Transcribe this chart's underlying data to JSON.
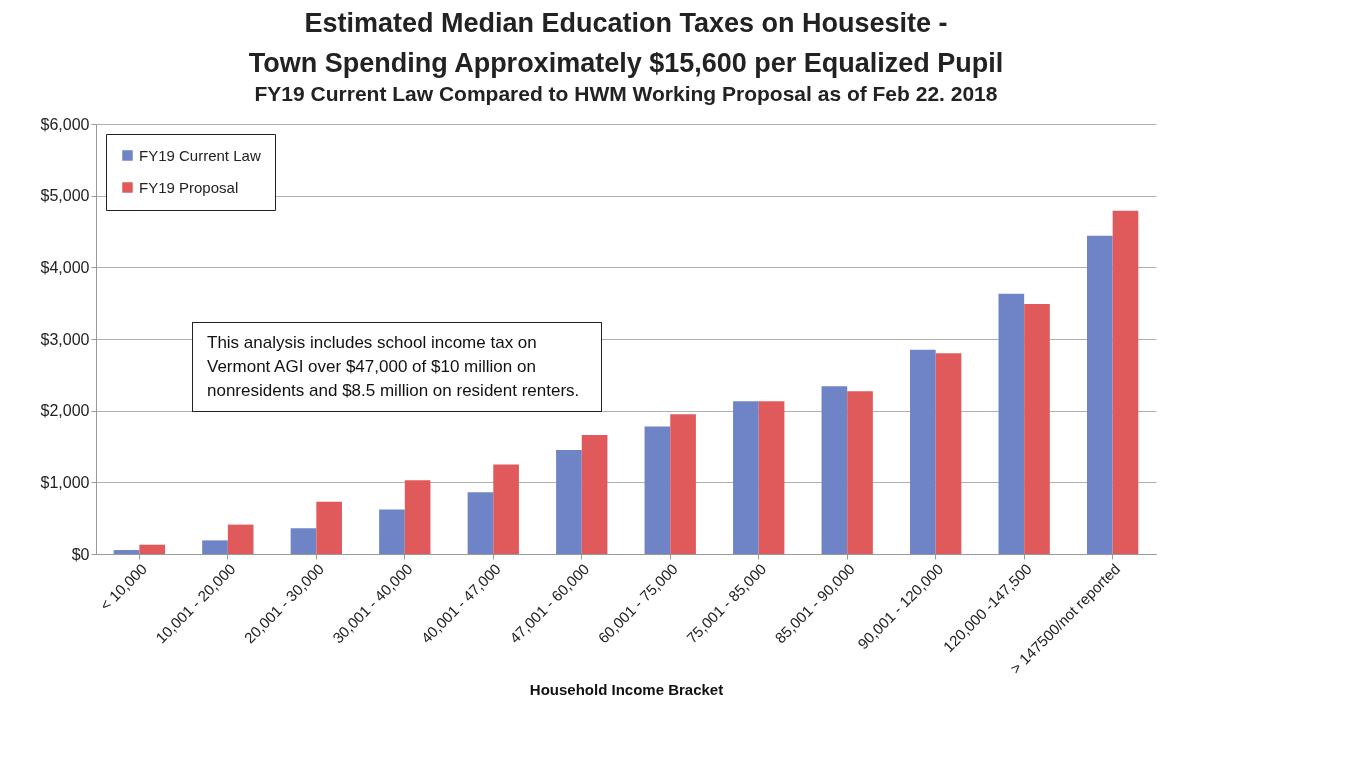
{
  "chart_data": {
    "type": "bar",
    "title": "Estimated Median Education Taxes on Housesite -\nTown Spending Approximately $15,600 per Equalized Pupil",
    "subtitle": "FY19 Current Law Compared to HWM Working Proposal as of Feb 22. 2018",
    "xlabel": "Household Income Bracket",
    "categories": [
      "< 10,000",
      "10,001 - 20,000",
      "20,001 - 30,000",
      "30,001 - 40,000",
      "40,001 - 47,000",
      "47,001 - 60,000",
      "60,001 - 75,000",
      "75,001 - 85,000",
      "85,001 - 90,000",
      "90,001 - 120,000",
      "120,000 -147,500",
      "> 147500/not reported"
    ],
    "series": [
      {
        "name": "FY19 Current Law",
        "color": "#6f83c7",
        "values": [
          55,
          190,
          360,
          620,
          860,
          1450,
          1780,
          2130,
          2340,
          2850,
          3630,
          4440
        ]
      },
      {
        "name": "FY19 Proposal",
        "color": "#e05a5b",
        "values": [
          130,
          410,
          730,
          1030,
          1250,
          1660,
          1950,
          2130,
          2270,
          2800,
          3490,
          4790
        ]
      }
    ],
    "ylim": [
      0,
      6000
    ],
    "yticks": [
      {
        "value": 0,
        "label": "$0"
      },
      {
        "value": 1000,
        "label": "$1,000"
      },
      {
        "value": 2000,
        "label": "$2,000"
      },
      {
        "value": 3000,
        "label": "$3,000"
      },
      {
        "value": 4000,
        "label": "$4,000"
      },
      {
        "value": 5000,
        "label": "$5,000"
      },
      {
        "value": 6000,
        "label": "$6,000"
      }
    ],
    "grid": "y",
    "legend": "top left",
    "annotations": [
      "This analysis includes school income tax on Vermont AGI over $47,000 of $10 million on nonresidents and $8.5 million on resident renters."
    ]
  }
}
